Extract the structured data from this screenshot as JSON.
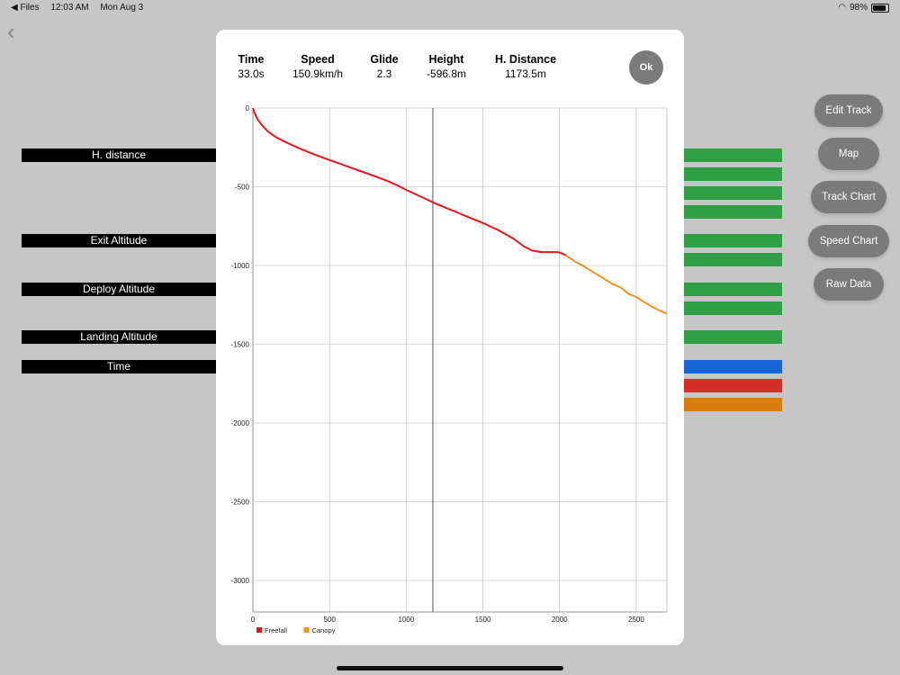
{
  "statusbar": {
    "back_app": "◀ Files",
    "time": "12:03 AM",
    "date": "Mon Aug 3",
    "battery": "98%"
  },
  "left_labels": [
    {
      "label": "H. distance",
      "top": 165
    },
    {
      "label": "Exit Altitude",
      "top": 260
    },
    {
      "label": "Deploy Altitude",
      "top": 314
    },
    {
      "label": "Landing Altitude",
      "top": 367
    },
    {
      "label": "Time",
      "top": 400
    }
  ],
  "colors": {
    "green": "#2e9f45",
    "blue": "#1866d6",
    "red": "#d42f26",
    "orange": "#d97c0c",
    "freefall": "#e8151b",
    "canopy": "#f2911d"
  },
  "side_buttons": [
    "Edit Track",
    "Map",
    "Track Chart",
    "Speed Chart",
    "Raw Data"
  ],
  "stats": [
    {
      "key": "Time",
      "value": "33.0s"
    },
    {
      "key": "Speed",
      "value": "150.9km/h"
    },
    {
      "key": "Glide",
      "value": "2.3"
    },
    {
      "key": "Height",
      "value": "-596.8m"
    },
    {
      "key": "H. Distance",
      "value": "1173.5m"
    }
  ],
  "ok_label": "Ok",
  "chart_data": {
    "type": "line",
    "xlim": [
      0,
      2700
    ],
    "ylim": [
      -3200,
      0
    ],
    "x_ticks": [
      0,
      500,
      1000,
      1500,
      2000,
      2500
    ],
    "y_ticks": [
      0,
      -500,
      -1000,
      -1500,
      -2000,
      -2500,
      -3000
    ],
    "grid": true,
    "legend_position": "bottom-left",
    "cursor_x": 1173.5,
    "series": [
      {
        "name": "Freefall",
        "color": "#e8151b",
        "points": [
          [
            0,
            0
          ],
          [
            10,
            -30
          ],
          [
            30,
            -70
          ],
          [
            60,
            -110
          ],
          [
            100,
            -150
          ],
          [
            150,
            -185
          ],
          [
            200,
            -210
          ],
          [
            300,
            -255
          ],
          [
            400,
            -295
          ],
          [
            500,
            -330
          ],
          [
            600,
            -365
          ],
          [
            700,
            -400
          ],
          [
            800,
            -435
          ],
          [
            870,
            -460
          ],
          [
            950,
            -495
          ],
          [
            1000,
            -520
          ],
          [
            1100,
            -565
          ],
          [
            1200,
            -610
          ],
          [
            1300,
            -650
          ],
          [
            1400,
            -690
          ],
          [
            1500,
            -730
          ],
          [
            1600,
            -775
          ],
          [
            1700,
            -830
          ],
          [
            1770,
            -880
          ],
          [
            1820,
            -905
          ],
          [
            1880,
            -915
          ],
          [
            1950,
            -915
          ],
          [
            1990,
            -915
          ],
          [
            2020,
            -925
          ],
          [
            2040,
            -935
          ]
        ]
      },
      {
        "name": "Canopy",
        "color": "#f2911d",
        "points": [
          [
            2040,
            -935
          ],
          [
            2100,
            -975
          ],
          [
            2150,
            -1000
          ],
          [
            2200,
            -1030
          ],
          [
            2250,
            -1060
          ],
          [
            2300,
            -1090
          ],
          [
            2350,
            -1120
          ],
          [
            2400,
            -1140
          ],
          [
            2450,
            -1180
          ],
          [
            2500,
            -1200
          ],
          [
            2550,
            -1230
          ],
          [
            2600,
            -1260
          ],
          [
            2650,
            -1285
          ],
          [
            2700,
            -1305
          ]
        ]
      }
    ]
  }
}
